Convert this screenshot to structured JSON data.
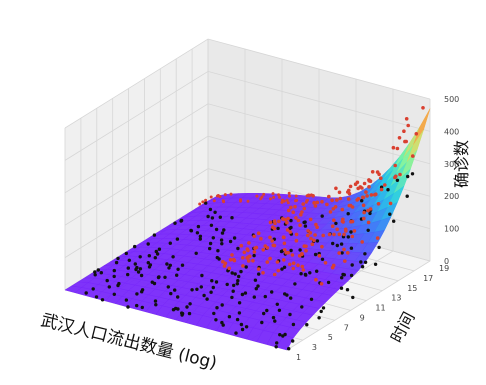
{
  "chart_data": {
    "type": "3d-surface-scatter",
    "xlabel": "武汉人口流出数量 (log)",
    "ylabel": "时间",
    "zlabel": "确诊数",
    "z_ticks": [
      "0",
      "100",
      "200",
      "300",
      "400",
      "500"
    ],
    "y_ticks": [
      "1",
      "3",
      "5",
      "7",
      "9",
      "11",
      "13",
      "15",
      "17",
      "19"
    ],
    "zlim": [
      0,
      500
    ],
    "ylim": [
      1,
      19
    ],
    "xlim": [
      0,
      1
    ],
    "series": [
      {
        "kind": "surface",
        "colormap": "rainbow"
      },
      {
        "kind": "scatter",
        "color": "#d94030"
      },
      {
        "kind": "scatter",
        "color": "#111111"
      }
    ],
    "grid": true
  }
}
